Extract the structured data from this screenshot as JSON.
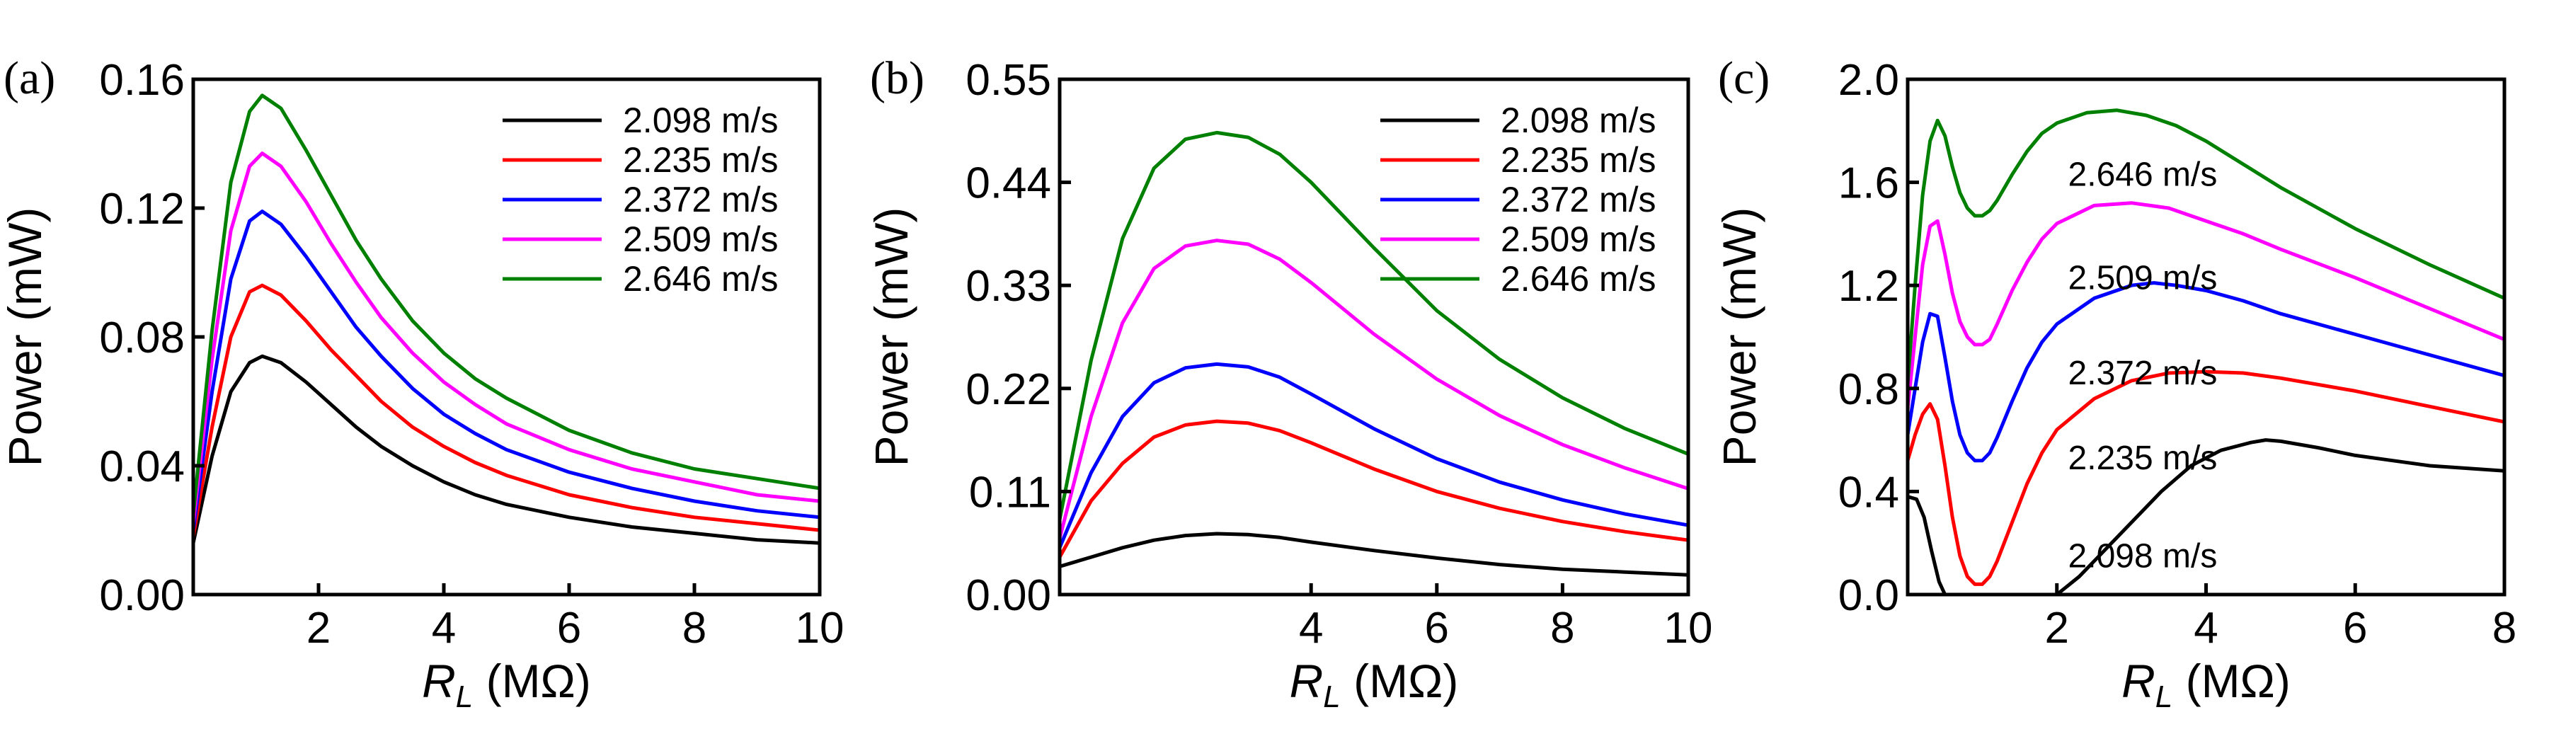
{
  "chart_data": [
    {
      "type": "line",
      "panel_label": "(a)",
      "xlabel": "R",
      "xlabel_sub": "L",
      "xlabel_unit": " (MΩ)",
      "ylabel": "Power (mW)",
      "xlim": [
        0,
        10
      ],
      "ylim": [
        0,
        0.16
      ],
      "xticks": [
        2,
        4,
        6,
        8,
        10
      ],
      "xtick_labels": [
        "2",
        "4",
        "6",
        "8",
        "10"
      ],
      "yticks": [
        0,
        0.04,
        0.08,
        0.12,
        0.16
      ],
      "ytick_labels": [
        "0.00",
        "0.04",
        "0.08",
        "0.12",
        "0.16"
      ],
      "legend": "top-right",
      "series": [
        {
          "name": "2.098 m/s",
          "color": "#000000",
          "x": [
            0,
            0.3,
            0.6,
            0.9,
            1.1,
            1.4,
            1.8,
            2.2,
            2.6,
            3,
            3.5,
            4,
            4.5,
            5,
            6,
            7,
            8,
            9,
            10
          ],
          "y": [
            0.016,
            0.043,
            0.063,
            0.072,
            0.074,
            0.072,
            0.066,
            0.059,
            0.052,
            0.046,
            0.04,
            0.035,
            0.031,
            0.028,
            0.024,
            0.021,
            0.019,
            0.017,
            0.016
          ]
        },
        {
          "name": "2.235 m/s",
          "color": "#ff0000",
          "x": [
            0,
            0.3,
            0.6,
            0.9,
            1.1,
            1.4,
            1.8,
            2.2,
            2.6,
            3,
            3.5,
            4,
            4.5,
            5,
            6,
            7,
            8,
            9,
            10
          ],
          "y": [
            0.018,
            0.052,
            0.08,
            0.094,
            0.096,
            0.093,
            0.085,
            0.076,
            0.068,
            0.06,
            0.052,
            0.046,
            0.041,
            0.037,
            0.031,
            0.027,
            0.024,
            0.022,
            0.02
          ]
        },
        {
          "name": "2.372 m/s",
          "color": "#0000ff",
          "x": [
            0,
            0.3,
            0.6,
            0.9,
            1.1,
            1.4,
            1.8,
            2.2,
            2.6,
            3,
            3.5,
            4,
            4.5,
            5,
            6,
            7,
            8,
            9,
            10
          ],
          "y": [
            0.02,
            0.063,
            0.098,
            0.116,
            0.119,
            0.115,
            0.105,
            0.094,
            0.083,
            0.074,
            0.064,
            0.056,
            0.05,
            0.045,
            0.038,
            0.033,
            0.029,
            0.026,
            0.024
          ]
        },
        {
          "name": "2.509 m/s",
          "color": "#ff00ff",
          "x": [
            0,
            0.3,
            0.6,
            0.9,
            1.1,
            1.4,
            1.8,
            2.2,
            2.6,
            3,
            3.5,
            4,
            4.5,
            5,
            6,
            7,
            8,
            9,
            10
          ],
          "y": [
            0.022,
            0.073,
            0.113,
            0.133,
            0.137,
            0.133,
            0.122,
            0.109,
            0.097,
            0.086,
            0.075,
            0.066,
            0.059,
            0.053,
            0.045,
            0.039,
            0.035,
            0.031,
            0.029
          ]
        },
        {
          "name": "2.646 m/s",
          "color": "#008000",
          "x": [
            0,
            0.3,
            0.6,
            0.9,
            1.1,
            1.4,
            1.8,
            2.2,
            2.6,
            3,
            3.5,
            4,
            4.5,
            5,
            6,
            7,
            8,
            9,
            10
          ],
          "y": [
            0.025,
            0.082,
            0.128,
            0.15,
            0.155,
            0.151,
            0.138,
            0.124,
            0.11,
            0.098,
            0.085,
            0.075,
            0.067,
            0.061,
            0.051,
            0.044,
            0.039,
            0.036,
            0.033
          ]
        }
      ]
    },
    {
      "type": "line",
      "panel_label": "(b)",
      "xlabel": "R",
      "xlabel_sub": "L",
      "xlabel_unit": " (MΩ)",
      "ylabel": "Power (mW)",
      "xlim": [
        0,
        10
      ],
      "ylim": [
        0,
        0.55
      ],
      "xticks": [
        4,
        6,
        8,
        10
      ],
      "xtick_labels": [
        "4",
        "6",
        "8",
        "10"
      ],
      "yticks": [
        0,
        0.11,
        0.22,
        0.33,
        0.44,
        0.55
      ],
      "ytick_labels": [
        "0.00",
        "0.11",
        "0.22",
        "0.33",
        "0.44",
        "0.55"
      ],
      "legend": "top-right",
      "series": [
        {
          "name": "2.098 m/s",
          "color": "#000000",
          "x": [
            0,
            0.5,
            1,
            1.5,
            2,
            2.5,
            3,
            3.5,
            4,
            5,
            6,
            7,
            8,
            9,
            10
          ],
          "y": [
            0.03,
            0.04,
            0.05,
            0.058,
            0.063,
            0.065,
            0.064,
            0.061,
            0.056,
            0.047,
            0.039,
            0.032,
            0.027,
            0.024,
            0.021
          ]
        },
        {
          "name": "2.235 m/s",
          "color": "#ff0000",
          "x": [
            0,
            0.5,
            1,
            1.5,
            2,
            2.5,
            3,
            3.5,
            4,
            5,
            6,
            7,
            8,
            9,
            10
          ],
          "y": [
            0.04,
            0.1,
            0.14,
            0.168,
            0.181,
            0.185,
            0.183,
            0.175,
            0.162,
            0.134,
            0.11,
            0.092,
            0.078,
            0.067,
            0.058
          ]
        },
        {
          "name": "2.372 m/s",
          "color": "#0000ff",
          "x": [
            0,
            0.5,
            1,
            1.5,
            2,
            2.5,
            3,
            3.5,
            4,
            5,
            6,
            7,
            8,
            9,
            10
          ],
          "y": [
            0.05,
            0.13,
            0.19,
            0.226,
            0.242,
            0.246,
            0.243,
            0.232,
            0.214,
            0.177,
            0.145,
            0.12,
            0.101,
            0.086,
            0.074
          ]
        },
        {
          "name": "2.509 m/s",
          "color": "#ff00ff",
          "x": [
            0,
            0.5,
            1,
            1.5,
            2,
            2.5,
            3,
            3.5,
            4,
            5,
            6,
            7,
            8,
            9,
            10
          ],
          "y": [
            0.06,
            0.19,
            0.29,
            0.348,
            0.372,
            0.378,
            0.374,
            0.358,
            0.333,
            0.278,
            0.23,
            0.191,
            0.16,
            0.135,
            0.113
          ]
        },
        {
          "name": "2.646 m/s",
          "color": "#008000",
          "x": [
            0,
            0.5,
            1,
            1.5,
            2,
            2.5,
            3,
            3.5,
            4,
            5,
            6,
            7,
            8,
            9,
            10
          ],
          "y": [
            0.08,
            0.25,
            0.38,
            0.455,
            0.486,
            0.493,
            0.488,
            0.47,
            0.44,
            0.37,
            0.303,
            0.251,
            0.21,
            0.177,
            0.15
          ]
        }
      ]
    },
    {
      "type": "line",
      "panel_label": "(c)",
      "xlabel": "R",
      "xlabel_sub": "L",
      "xlabel_unit": " (MΩ)",
      "ylabel": "Power (mW)",
      "xlim": [
        0,
        8
      ],
      "ylim": [
        0,
        2.0
      ],
      "xticks": [
        2,
        4,
        6,
        8
      ],
      "xtick_labels": [
        "2",
        "4",
        "6",
        "8"
      ],
      "yticks": [
        0,
        0.4,
        0.8,
        1.2,
        1.6,
        2.0
      ],
      "ytick_labels": [
        "0.0",
        "0.4",
        "0.8",
        "1.2",
        "1.6",
        "2.0"
      ],
      "legend": "none",
      "series": [
        {
          "name": "2.098 m/s",
          "color": "#000000",
          "label_at": [
            2.15,
            0.15
          ],
          "segments": [
            {
              "x": [
                0,
                0.12,
                0.22,
                0.32,
                0.42,
                0.5
              ],
              "y": [
                0.38,
                0.37,
                0.3,
                0.17,
                0.05,
                0.0
              ]
            },
            {
              "x": [
                2.0,
                2.3,
                2.6,
                3.0,
                3.4,
                3.8,
                4.2,
                4.6,
                4.8,
                5.0,
                5.5,
                6.0,
                6.5,
                7.0,
                7.5,
                8.0
              ],
              "y": [
                0.0,
                0.07,
                0.16,
                0.28,
                0.4,
                0.5,
                0.56,
                0.59,
                0.6,
                0.595,
                0.57,
                0.54,
                0.52,
                0.5,
                0.49,
                0.48
              ]
            }
          ]
        },
        {
          "name": "2.235 m/s",
          "color": "#ff0000",
          "label_at": [
            2.15,
            0.53
          ],
          "segments": [
            {
              "x": [
                0,
                0.1,
                0.2,
                0.3,
                0.4,
                0.5,
                0.6,
                0.7,
                0.8,
                0.9,
                1.0,
                1.1,
                1.2,
                1.4,
                1.6,
                1.8,
                2.0,
                2.5,
                3.0,
                3.5,
                4.0,
                4.5,
                5.0,
                6.0,
                7.0,
                8.0
              ],
              "y": [
                0.52,
                0.62,
                0.7,
                0.74,
                0.68,
                0.5,
                0.3,
                0.15,
                0.07,
                0.04,
                0.04,
                0.07,
                0.13,
                0.28,
                0.43,
                0.55,
                0.64,
                0.76,
                0.83,
                0.86,
                0.865,
                0.86,
                0.84,
                0.79,
                0.73,
                0.67
              ]
            }
          ]
        },
        {
          "name": "2.372 m/s",
          "color": "#0000ff",
          "label_at": [
            2.15,
            0.86
          ],
          "segments": [
            {
              "x": [
                0,
                0.1,
                0.2,
                0.3,
                0.4,
                0.5,
                0.6,
                0.7,
                0.8,
                0.9,
                1.0,
                1.1,
                1.2,
                1.4,
                1.6,
                1.8,
                2.0,
                2.5,
                3.0,
                3.3,
                3.6,
                4.0,
                4.5,
                5.0,
                6.0,
                7.0,
                8.0
              ],
              "y": [
                0.62,
                0.8,
                0.98,
                1.09,
                1.08,
                0.92,
                0.75,
                0.62,
                0.55,
                0.52,
                0.52,
                0.55,
                0.61,
                0.75,
                0.88,
                0.98,
                1.05,
                1.15,
                1.2,
                1.21,
                1.2,
                1.18,
                1.14,
                1.09,
                1.01,
                0.93,
                0.85
              ]
            }
          ]
        },
        {
          "name": "2.509 m/s",
          "color": "#ff00ff",
          "label_at": [
            2.15,
            1.23
          ],
          "segments": [
            {
              "x": [
                0,
                0.1,
                0.2,
                0.3,
                0.4,
                0.5,
                0.6,
                0.7,
                0.8,
                0.9,
                1.0,
                1.1,
                1.2,
                1.4,
                1.6,
                1.8,
                2.0,
                2.5,
                3.0,
                3.5,
                4.0,
                4.5,
                5.0,
                6.0,
                7.0,
                8.0
              ],
              "y": [
                0.72,
                1.0,
                1.28,
                1.43,
                1.45,
                1.32,
                1.17,
                1.06,
                1.0,
                0.97,
                0.97,
                0.99,
                1.05,
                1.18,
                1.29,
                1.38,
                1.44,
                1.51,
                1.52,
                1.5,
                1.45,
                1.4,
                1.34,
                1.23,
                1.11,
                0.99
              ]
            }
          ]
        },
        {
          "name": "2.646 m/s",
          "color": "#008000",
          "label_at": [
            2.15,
            1.63
          ],
          "segments": [
            {
              "x": [
                0,
                0.1,
                0.2,
                0.3,
                0.4,
                0.5,
                0.6,
                0.7,
                0.8,
                0.9,
                1.0,
                1.1,
                1.2,
                1.4,
                1.6,
                1.8,
                2.0,
                2.4,
                2.8,
                3.2,
                3.6,
                4.0,
                4.5,
                5.0,
                6.0,
                7.0,
                8.0
              ],
              "y": [
                0.82,
                1.2,
                1.55,
                1.76,
                1.84,
                1.78,
                1.66,
                1.56,
                1.5,
                1.47,
                1.47,
                1.49,
                1.53,
                1.63,
                1.72,
                1.79,
                1.83,
                1.87,
                1.88,
                1.86,
                1.82,
                1.76,
                1.67,
                1.58,
                1.42,
                1.28,
                1.15
              ]
            }
          ]
        }
      ]
    }
  ]
}
